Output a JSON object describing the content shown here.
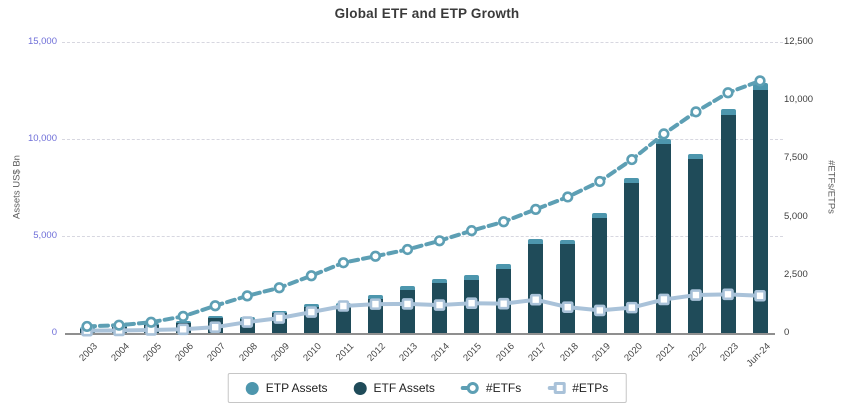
{
  "title": "Global ETF and ETP Growth",
  "chart_data": {
    "type": "bar",
    "subtype": "stacked-bar-with-dual-axis-lines",
    "title": "Global ETF and ETP Growth",
    "categories": [
      "2003",
      "2004",
      "2005",
      "2006",
      "2007",
      "2008",
      "2009",
      "2010",
      "2011",
      "2012",
      "2013",
      "2014",
      "2015",
      "2016",
      "2017",
      "2018",
      "2019",
      "2020",
      "2021",
      "2022",
      "2023",
      "Jun-24"
    ],
    "series": [
      {
        "name": "ETP Assets",
        "type": "bar-stack-top-segment",
        "axis": "left",
        "color": "#4D96AD",
        "values": [
          5,
          8,
          25,
          45,
          65,
          55,
          100,
          140,
          155,
          175,
          200,
          220,
          235,
          245,
          270,
          230,
          255,
          270,
          295,
          280,
          320,
          350
        ]
      },
      {
        "name": "ETF Assets",
        "type": "bar-stack-bottom-segment",
        "axis": "left",
        "color": "#1F4B59",
        "values": [
          207,
          302,
          392,
          535,
          786,
          719,
          1056,
          1338,
          1371,
          1774,
          2198,
          2564,
          2757,
          3301,
          4565,
          4577,
          5939,
          7720,
          9726,
          8949,
          11230,
          12540
        ]
      },
      {
        "name": "#ETFs",
        "type": "line-dashed-circle-markers",
        "axis": "right",
        "color": "#5D9FB4",
        "values": [
          282,
          336,
          461,
          714,
          1170,
          1595,
          1944,
          2460,
          3019,
          3297,
          3588,
          3961,
          4396,
          4779,
          5311,
          5844,
          6510,
          7450,
          8552,
          9500,
          10320,
          10830
        ]
      },
      {
        "name": "#ETPs",
        "type": "line-square-markers",
        "axis": "right",
        "color": "#A9C2D9",
        "values": [
          100,
          110,
          130,
          160,
          250,
          470,
          640,
          900,
          1160,
          1240,
          1250,
          1200,
          1280,
          1260,
          1430,
          1110,
          970,
          1090,
          1440,
          1630,
          1660,
          1600
        ]
      }
    ],
    "left_axis": {
      "label": "Assets US$ Bn",
      "max": 15000,
      "tick_values": [
        0,
        5000,
        10000,
        15000
      ],
      "tick_labels": [
        "0",
        "5,000",
        "10,000",
        "15,000"
      ],
      "tick_color": "#6E6ED8"
    },
    "right_axis": {
      "label": "#ETFs/ETPs",
      "max": 12500,
      "tick_values": [
        0,
        2500,
        5000,
        7500,
        10000,
        12500
      ],
      "tick_labels": [
        "0",
        "2,500",
        "5,000",
        "7,500",
        "10,000",
        "12,500"
      ],
      "tick_color": "#3C3C3C"
    },
    "grid": "horizontal dashed lines at left-axis ticks",
    "legend_position": "bottom-center-boxed",
    "legend_items": [
      {
        "label": "ETP Assets",
        "marker": "filled-circle",
        "color": "#4D96AD"
      },
      {
        "label": "ETF Assets",
        "marker": "filled-circle",
        "color": "#1F4B59"
      },
      {
        "label": "#ETFs",
        "marker": "dash-open-circle",
        "color": "#5D9FB4"
      },
      {
        "label": "#ETPs",
        "marker": "dash-open-square",
        "color": "#A9C2D9"
      }
    ]
  }
}
